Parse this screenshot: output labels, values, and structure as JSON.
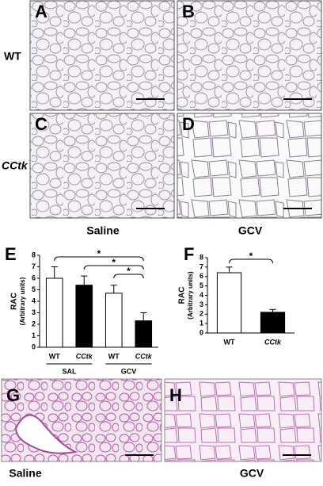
{
  "panels": {
    "labels": [
      "A",
      "B",
      "C",
      "D",
      "G",
      "H"
    ]
  },
  "rows": [
    "WT",
    "CCtk"
  ],
  "columns_top": [
    "Saline",
    "GCV"
  ],
  "columns_bottom": [
    "Saline",
    "GCV"
  ],
  "chart_data": [
    {
      "type": "bar",
      "panel": "E",
      "ylabel": "RAC",
      "ylabel_sub": "(Arbitrary units)",
      "categories": [
        "WT",
        "CCtk",
        "WT",
        "CCtk"
      ],
      "values": [
        6.0,
        5.4,
        4.7,
        2.3
      ],
      "errors": [
        1.0,
        0.8,
        0.7,
        0.7
      ],
      "colors": [
        "#ffffff",
        "#000000",
        "#ffffff",
        "#000000"
      ],
      "groups": [
        {
          "label": "SAL",
          "span": [
            0,
            1
          ]
        },
        {
          "label": "GCV",
          "span": [
            2,
            3
          ]
        }
      ],
      "significance": [
        {
          "pair": [
            0,
            3
          ],
          "label": "*"
        },
        {
          "pair": [
            1,
            3
          ],
          "label": "*"
        },
        {
          "pair": [
            2,
            3
          ],
          "label": "*"
        }
      ],
      "ylim": [
        0,
        8
      ],
      "yticks": [
        0,
        1,
        2,
        3,
        4,
        5,
        6,
        7,
        8
      ]
    },
    {
      "type": "bar",
      "panel": "F",
      "ylabel": "RAC",
      "ylabel_sub": "(Arbitrary units)",
      "categories": [
        "WT",
        "CCtk"
      ],
      "values": [
        6.4,
        2.2
      ],
      "errors": [
        0.6,
        0.3
      ],
      "colors": [
        "#ffffff",
        "#000000"
      ],
      "significance": [
        {
          "pair": [
            0,
            1
          ],
          "label": "*"
        }
      ],
      "ylim": [
        0,
        8
      ],
      "yticks": [
        0,
        1,
        2,
        3,
        4,
        5,
        6,
        7,
        8
      ]
    }
  ]
}
